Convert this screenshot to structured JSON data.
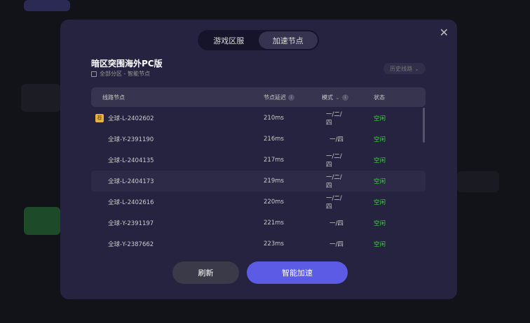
{
  "modal": {
    "tabs": [
      {
        "label": "游戏区服",
        "active": false
      },
      {
        "label": "加速节点",
        "active": true
      }
    ],
    "title": "暗区突围海外PC版",
    "subtitle": "全部分区 - 智能节点",
    "history_label": "历史线路",
    "columns": {
      "node": "线路节点",
      "latency": "节点延迟",
      "mode": "模式",
      "status": "状态"
    },
    "recommend_badge": "荐",
    "rows": [
      {
        "node": "全球-L-2402602",
        "latency": "210ms",
        "mode": "一/二/四",
        "status": "空闲",
        "recommended": true
      },
      {
        "node": "全球-Y-2391190",
        "latency": "216ms",
        "mode": "一/四",
        "status": "空闲"
      },
      {
        "node": "全球-L-2404135",
        "latency": "217ms",
        "mode": "一/二/四",
        "status": "空闲"
      },
      {
        "node": "全球-L-2404173",
        "latency": "219ms",
        "mode": "一/二/四",
        "status": "空闲",
        "hover": true
      },
      {
        "node": "全球-L-2402616",
        "latency": "220ms",
        "mode": "一/二/四",
        "status": "空闲"
      },
      {
        "node": "全球-Y-2391197",
        "latency": "221ms",
        "mode": "一/四",
        "status": "空闲"
      },
      {
        "node": "全球-Y-2387662",
        "latency": "223ms",
        "mode": "一/四",
        "status": "空闲"
      }
    ],
    "refresh_label": "刷新",
    "accelerate_label": "智能加速",
    "colors": {
      "accent": "#5b5be6",
      "status": "#3fcf3f",
      "badge": "#e8b440"
    }
  }
}
